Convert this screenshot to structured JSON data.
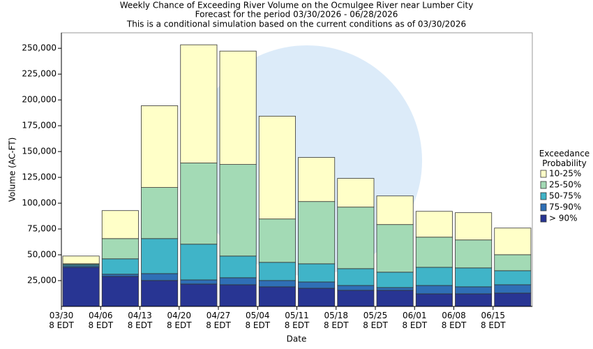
{
  "chart_data": {
    "type": "stacked_bar",
    "title": "Weekly Chance of Exceeding River Volume on the Ocmulgee River near Lumber City",
    "subtitle": "Forecast for the period 03/30/2026 - 06/28/2026",
    "subtitle2": "This is a conditional simulation based on the current conditions as of 03/30/2026",
    "x_label": "Date",
    "y_label": "Volume (AC-FT)",
    "legend_title": "Exceedance\nProbability",
    "legend_position": "right",
    "categories": [
      "03/30\n8 EDT",
      "04/06\n8 EDT",
      "04/13\n8 EDT",
      "04/20\n8 EDT",
      "04/27\n8 EDT",
      "05/04\n8 EDT",
      "05/11\n8 EDT",
      "05/18\n8 EDT",
      "05/25\n8 EDT",
      "06/01\n8 EDT",
      "06/08\n8 EDT",
      "06/15\n8 EDT"
    ],
    "series": [
      {
        "name": "> 90%",
        "color": "#283593",
        "values": [
          37900,
          29100,
          25100,
          21700,
          21000,
          19000,
          17600,
          15600,
          15600,
          12200,
          12200,
          12900
        ]
      },
      {
        "name": "75-90%",
        "color": "#2f6fb6",
        "values": [
          1400,
          2100,
          6700,
          4000,
          6800,
          6100,
          6100,
          4700,
          2700,
          8100,
          6800,
          8100
        ]
      },
      {
        "name": "50-75%",
        "color": "#40b4c8",
        "values": [
          1300,
          14900,
          33900,
          34600,
          21000,
          17600,
          17600,
          16300,
          14900,
          17600,
          18300,
          13600
        ]
      },
      {
        "name": "25-50%",
        "color": "#a3dab5",
        "values": [
          700,
          19600,
          49500,
          78600,
          88700,
          42000,
          60300,
          59600,
          46100,
          29200,
          27100,
          15500
        ]
      },
      {
        "name": "10-25%",
        "color": "#ffffc8",
        "values": [
          7500,
          27100,
          79200,
          114500,
          109800,
          99600,
          42700,
          27800,
          27700,
          25000,
          26400,
          25800
        ]
      }
    ],
    "ylim": [
      0,
      265000
    ],
    "yticks": [
      {
        "value": 25000,
        "label": "25,000"
      },
      {
        "value": 50000,
        "label": "50,000"
      },
      {
        "value": 75000,
        "label": "75,000"
      },
      {
        "value": 100000,
        "label": "100,000"
      },
      {
        "value": 125000,
        "label": "125,000"
      },
      {
        "value": 150000,
        "label": "150,000"
      },
      {
        "value": 175000,
        "label": "175,000"
      },
      {
        "value": 200000,
        "label": "200,000"
      },
      {
        "value": 225000,
        "label": "225,000"
      },
      {
        "value": 250000,
        "label": "250,000"
      }
    ]
  }
}
